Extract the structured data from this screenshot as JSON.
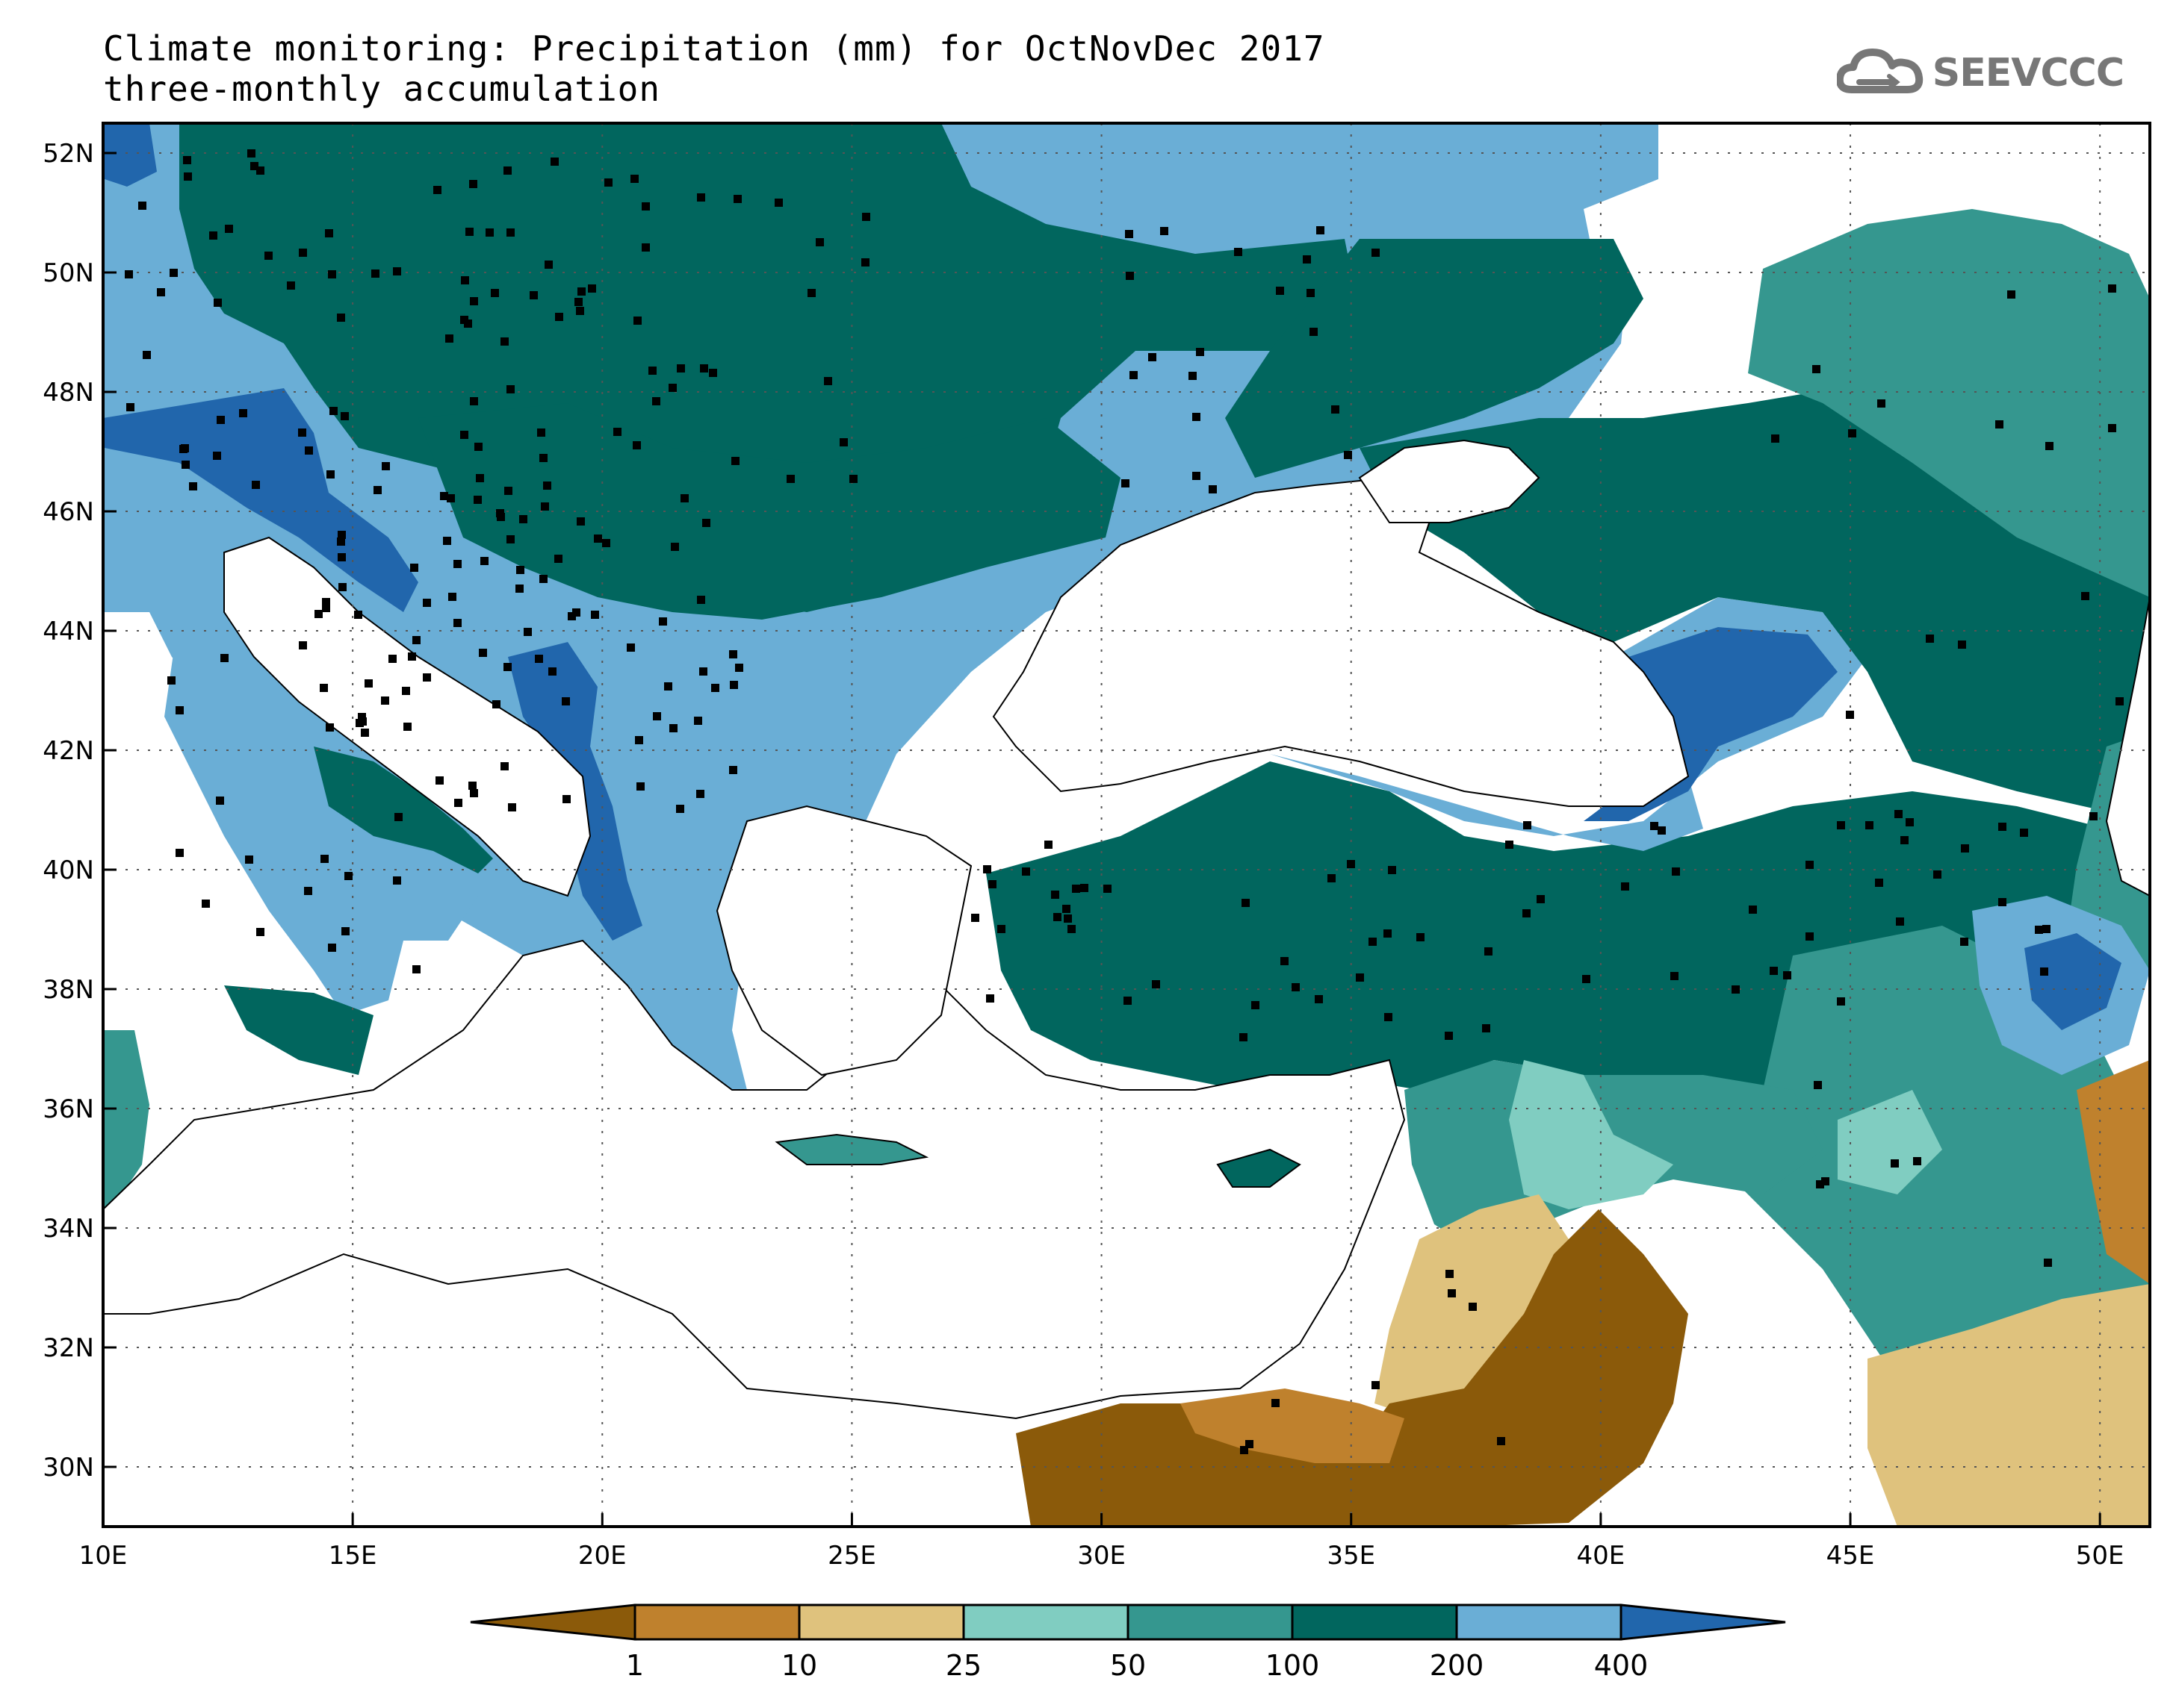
{
  "title_line1": "Climate monitoring: Precipitation (mm) for OctNovDec 2017",
  "title_line2": "three-monthly accumulation",
  "logo": {
    "text": "SEEVCCC",
    "icon": "cloud-icon",
    "color": "#777777"
  },
  "map": {
    "lon_range": [
      10,
      51
    ],
    "lat_range": [
      29,
      52.5
    ],
    "lon_ticks": [
      "10E",
      "15E",
      "20E",
      "25E",
      "30E",
      "35E",
      "40E",
      "45E",
      "50E"
    ],
    "lat_ticks": [
      "52N",
      "50N",
      "48N",
      "46N",
      "44N",
      "42N",
      "40N",
      "38N",
      "36N",
      "34N",
      "32N",
      "30N"
    ],
    "grid": "dotted"
  },
  "colorbar": {
    "labels": [
      "1",
      "10",
      "25",
      "50",
      "100",
      "200",
      "400"
    ],
    "colors": [
      "#8b5a0a",
      "#bf812d",
      "#dfc27d",
      "#80cdc1",
      "#35978f",
      "#01665e",
      "#6aaed6",
      "#2166ac"
    ]
  }
}
